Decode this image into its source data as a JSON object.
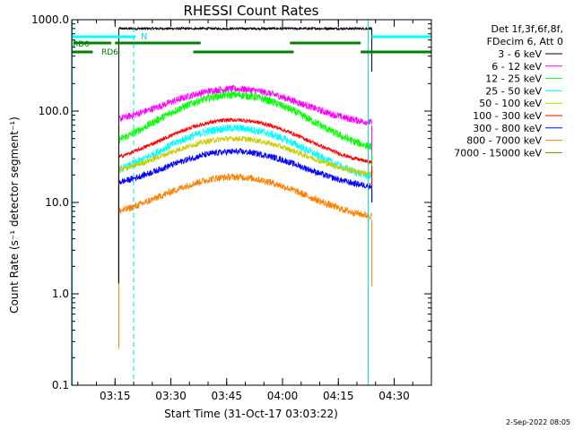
{
  "chart_data": {
    "type": "line",
    "title": "RHESSI Count Rates",
    "xlabel": "Start Time (31-Oct-17 03:03:22)",
    "ylabel": "Count Rate (s⁻¹ detector segment⁻¹)",
    "y_scale": "log",
    "ylim": [
      0.1,
      1000
    ],
    "xlim": [
      "03:03:22",
      "04:40:00"
    ],
    "x_tick_labels": [
      "03:15",
      "03:30",
      "03:45",
      "04:00",
      "04:15",
      "04:30"
    ],
    "y_tick_labels": [
      "0.1",
      "1.0",
      "10.0",
      "100.0",
      "1000.0"
    ],
    "grid": false,
    "legend_position": "top-right",
    "legend_header": [
      "Det 1f,3f,6f,8f,",
      "FDecim 6, Att 0"
    ],
    "footer": "2-Sep-2022 08:05",
    "data_start": "03:16:00",
    "data_end": "04:24:00",
    "peak_time": "03:47:00",
    "series": [
      {
        "name": "3 - 6 keV",
        "color": "#000000",
        "baseline": 800,
        "peak": 800,
        "noise": 0.03
      },
      {
        "name": "6 - 12 keV",
        "color": "#ff00ff",
        "baseline": 70,
        "peak": 175,
        "noise": 0.09
      },
      {
        "name": "12 - 25 keV",
        "color": "#00ff00",
        "baseline": 35,
        "peak": 150,
        "noise": 0.1
      },
      {
        "name": "25 - 50 keV",
        "color": "#00ffff",
        "baseline": 17,
        "peak": 65,
        "noise": 0.1
      },
      {
        "name": "50 - 100 keV",
        "color": "#cccc00",
        "baseline": 19,
        "peak": 50,
        "noise": 0.07
      },
      {
        "name": "100 - 300 keV",
        "color": "#ff0000",
        "baseline": 25,
        "peak": 80,
        "noise": 0.05
      },
      {
        "name": "300 - 800 keV",
        "color": "#0000ff",
        "baseline": 14,
        "peak": 36,
        "noise": 0.08
      },
      {
        "name": "800 - 7000 keV",
        "color": "#ff8000",
        "baseline": 6.5,
        "peak": 19,
        "noise": 0.09
      },
      {
        "name": "7000 - 15000 keV",
        "color": "#808000",
        "baseline": null,
        "peak": null,
        "noise": 0
      }
    ],
    "annotations": {
      "vlines_solid_cyan": [
        "03:03:30",
        "04:23:00"
      ],
      "vlines_dashed_cyan": [
        "03:20:00",
        "04:40:00"
      ],
      "n_label": "N",
      "rd0_label": "RD0",
      "rd6_label": "RD6",
      "cyan_segments": [
        [
          "03:03:22",
          "03:20:30"
        ],
        [
          "04:24:00",
          "04:40:00"
        ]
      ],
      "green_segments_upper": [
        [
          "03:04:00",
          "03:14:00"
        ],
        [
          "03:15:00",
          "03:38:00"
        ],
        [
          "04:02:00",
          "04:21:00"
        ]
      ],
      "green_segments_lower": [
        [
          "03:03:22",
          "03:09:00"
        ],
        [
          "03:36:00",
          "04:03:00"
        ],
        [
          "04:21:00",
          "04:40:00"
        ]
      ]
    }
  }
}
